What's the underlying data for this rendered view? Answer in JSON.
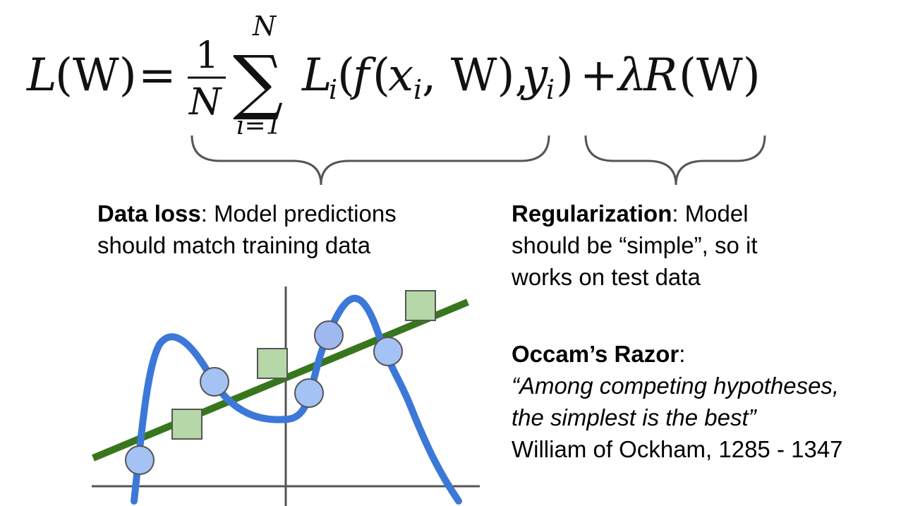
{
  "formula": {
    "lhs_L": "L",
    "lhs_arg": "(W)",
    "equals": "=",
    "frac_num": "1",
    "frac_den": "N",
    "sum_symbol": "∑",
    "sum_top": "N",
    "sum_bottom": "i=1",
    "term_L": "L",
    "term_L_sub": "i",
    "term_open": "(",
    "term_f": "f",
    "term_f_open": "(",
    "term_x": "x",
    "term_x_sub": "i",
    "term_mid": ", W), ",
    "term_y": "y",
    "term_y_sub": "i",
    "term_close": ")",
    "plus": "+",
    "lambda": "λ",
    "reg_R": "R",
    "reg_arg": "(W)"
  },
  "data_loss": {
    "label": "Data loss",
    "rest": ": Model predictions",
    "line2": "should match training data"
  },
  "regularization": {
    "label": "Regularization",
    "rest": ": Model",
    "line2": "should be “simple”, so it",
    "line3": "works on test data"
  },
  "occam": {
    "label": "Occam’s Razor",
    "colon": ":",
    "quote_line1": "“Among competing hypotheses,",
    "quote_line2": "the simplest is the best”",
    "attribution": "William of Ockham, 1285 - 1347"
  },
  "colors": {
    "brace": "#555555",
    "axis": "#555555",
    "blue_curve": "#3c78d8",
    "green_line": "#38761d",
    "circle_fill": "#a4c2f4",
    "circle_fill_highlight": "#9fb8f0",
    "circle_stroke": "#555555",
    "square_fill": "#b6d7a8",
    "square_stroke": "#555555"
  }
}
